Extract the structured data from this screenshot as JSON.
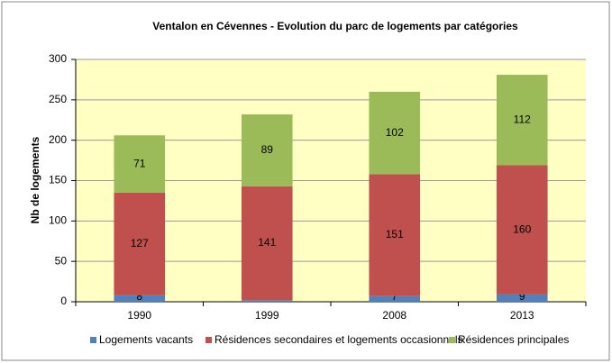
{
  "chart_data": {
    "type": "stacked_bar",
    "title": "Ventalon en Cévennes - Evolution du parc de logements par catégories",
    "y_label": "Nb de logements",
    "categories": [
      "1990",
      "1999",
      "2008",
      "2013"
    ],
    "series": [
      {
        "name": "Logements vacants",
        "color": "#4f81bd",
        "values": [
          8,
          2,
          7,
          9
        ]
      },
      {
        "name": "Résidences secondaires et logements occasionnels",
        "color": "#c0504d",
        "values": [
          127,
          141,
          151,
          160
        ]
      },
      {
        "name": "Résidences principales",
        "color": "#9bbb59",
        "values": [
          71,
          89,
          102,
          112
        ]
      }
    ],
    "ylim": [
      0,
      300
    ],
    "yticks": [
      0,
      50,
      100,
      150,
      200,
      250,
      300
    ],
    "grid": true,
    "legend": "bottom"
  }
}
